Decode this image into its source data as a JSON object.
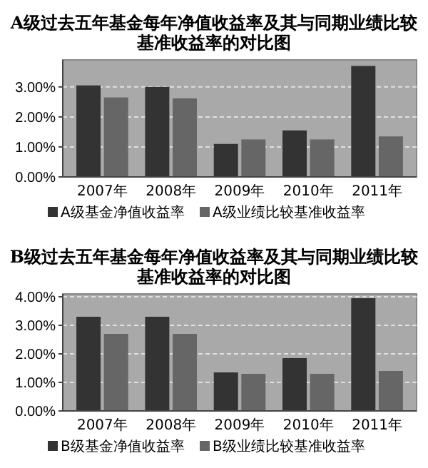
{
  "chart_data": [
    {
      "type": "bar",
      "title": "A级过去五年基金每年净值收益率及其与同期业绩比较基准收益率的对比图",
      "categories": [
        "2007年",
        "2008年",
        "2009年",
        "2010年",
        "2011年"
      ],
      "series": [
        {
          "name": "A级基金净值收益率",
          "color": "#333333",
          "values": [
            3.05,
            3.0,
            1.1,
            1.55,
            3.7
          ]
        },
        {
          "name": "A级业绩比较基准收益率",
          "color": "#666666",
          "values": [
            2.65,
            2.62,
            1.25,
            1.25,
            1.35
          ]
        }
      ],
      "ylim": [
        0,
        3.9
      ],
      "yticks": [
        {
          "value": 0,
          "label": "0.00%"
        },
        {
          "value": 1,
          "label": "1.00%"
        },
        {
          "value": 2,
          "label": "2.00%"
        },
        {
          "value": 3,
          "label": "3.00%"
        }
      ],
      "grid": "y",
      "legend": "bottom"
    },
    {
      "type": "bar",
      "title": "B级过去五年基金每年净值收益率及其与同期业绩比较基准收益率的对比图",
      "categories": [
        "2007年",
        "2008年",
        "2009年",
        "2010年",
        "2011年"
      ],
      "series": [
        {
          "name": "B级基金净值收益率",
          "color": "#333333",
          "values": [
            3.3,
            3.3,
            1.35,
            1.85,
            3.95
          ]
        },
        {
          "name": "B级业绩比较基准收益率",
          "color": "#666666",
          "values": [
            2.7,
            2.7,
            1.3,
            1.3,
            1.4
          ]
        }
      ],
      "ylim": [
        0,
        4.1
      ],
      "yticks": [
        {
          "value": 0,
          "label": "0.00%"
        },
        {
          "value": 1,
          "label": "1.00%"
        },
        {
          "value": 2,
          "label": "2.00%"
        },
        {
          "value": 3,
          "label": "3.00%"
        },
        {
          "value": 4,
          "label": "4.00%"
        }
      ],
      "grid": "y",
      "legend": "bottom"
    }
  ]
}
